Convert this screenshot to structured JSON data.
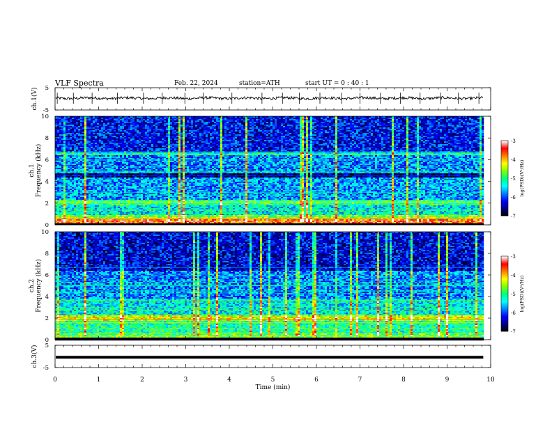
{
  "header": {
    "title": "VLF  Spectra",
    "date": "Feb. 22, 2024",
    "station": "station=ATH",
    "start_ut": "start  UT  =    0  : 40 : 1"
  },
  "chart_data": [
    {
      "type": "line",
      "panel": "ch1-waveform",
      "ylabel": "ch.1(V)",
      "ylim": [
        -5,
        5
      ],
      "yticks": [
        "5",
        "-5"
      ],
      "xlim": [
        0,
        10
      ],
      "baseline_v": 0.3,
      "noise_v": 0.6,
      "data_end_min": 9.83,
      "spikes_min": [
        0.05,
        0.42,
        0.85,
        1.43,
        2.03,
        2.46,
        2.98,
        3.4,
        4.06,
        4.75,
        5.22,
        5.61,
        6.08,
        6.58,
        7.0,
        7.47,
        7.93,
        8.38,
        8.85,
        9.26,
        9.73
      ],
      "color": "#000000"
    },
    {
      "type": "heatmap",
      "panel": "ch1-spectrogram",
      "ylabel": "Frequency  (kHz)",
      "channel_label": "ch.1",
      "ylim": [
        0,
        10
      ],
      "yticks": [
        "0",
        "2",
        "4",
        "6",
        "8",
        "10"
      ],
      "xlim": [
        0,
        10
      ],
      "data_end_min": 9.83,
      "bands_khz": [
        {
          "f0": 0.0,
          "f1": 0.15,
          "level": -7
        },
        {
          "f0": 0.15,
          "f1": 0.5,
          "level": -3.6
        },
        {
          "f0": 0.5,
          "f1": 0.9,
          "level": -4.6
        },
        {
          "f0": 0.9,
          "f1": 1.8,
          "level": -5.4
        },
        {
          "f0": 1.8,
          "f1": 2.3,
          "level": -5.0
        },
        {
          "f0": 2.3,
          "f1": 4.3,
          "level": -5.7
        },
        {
          "f0": 4.3,
          "f1": 4.8,
          "level": -6.6
        },
        {
          "f0": 4.8,
          "f1": 6.4,
          "level": -5.8
        },
        {
          "f0": 6.4,
          "f1": 6.7,
          "level": -5.2
        },
        {
          "f0": 6.7,
          "f1": 10.0,
          "level": -6.2
        }
      ],
      "colorbar": {
        "label": "log(PSD)(V²/Hz)",
        "range": [
          -7,
          -3
        ],
        "ticks": [
          "-3",
          "-4",
          "-5",
          "-6",
          "-7"
        ]
      }
    },
    {
      "type": "heatmap",
      "panel": "ch2-spectrogram",
      "ylabel": "Frequency  (kHz)",
      "channel_label": "ch.2",
      "ylim": [
        0,
        10
      ],
      "yticks": [
        "0",
        "2",
        "4",
        "6",
        "8",
        "10"
      ],
      "xlim": [
        0,
        10
      ],
      "data_end_min": 9.83,
      "bands_khz": [
        {
          "f0": 0.0,
          "f1": 0.15,
          "level": -7
        },
        {
          "f0": 0.15,
          "f1": 0.6,
          "level": -4.8
        },
        {
          "f0": 0.6,
          "f1": 1.7,
          "level": -5.1
        },
        {
          "f0": 1.7,
          "f1": 2.3,
          "level": -4.3
        },
        {
          "f0": 2.3,
          "f1": 3.8,
          "level": -5.4
        },
        {
          "f0": 3.8,
          "f1": 6.4,
          "level": -5.8
        },
        {
          "f0": 6.4,
          "f1": 10.0,
          "level": -6.3
        }
      ],
      "colorbar": {
        "label": "log(PSD)(V²/Hz)",
        "range": [
          -7,
          -3
        ],
        "ticks": [
          "-3",
          "-4",
          "-5",
          "-6",
          "-7"
        ]
      }
    },
    {
      "type": "line",
      "panel": "ch3-waveform",
      "ylabel": "ch.3(V)",
      "ylim": [
        -5,
        5
      ],
      "yticks": [
        "5",
        "-5"
      ],
      "xlim": [
        0,
        10
      ],
      "level_v": -0.4,
      "data_end_min": 9.83,
      "color": "#000000",
      "xlabel": "Time  (min)",
      "xticks": [
        "0",
        "1",
        "2",
        "3",
        "4",
        "5",
        "6",
        "7",
        "8",
        "9",
        "10"
      ]
    }
  ],
  "colors": {
    "jet": [
      "#000000",
      "#00007f",
      "#0000ff",
      "#0080ff",
      "#00ffff",
      "#00ff80",
      "#80ff00",
      "#ffff00",
      "#ff8000",
      "#ff0000",
      "#ffffff"
    ]
  }
}
